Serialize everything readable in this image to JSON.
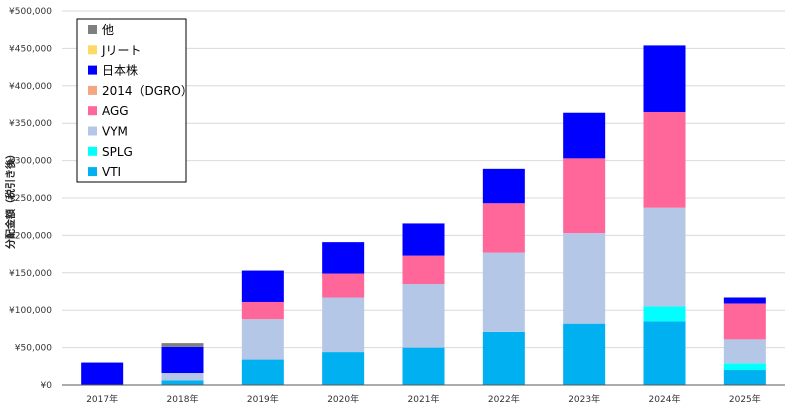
{
  "chart_data": {
    "type": "bar",
    "stacked": true,
    "title": "",
    "xlabel": "",
    "ylabel": "分配金額（税引き後）",
    "ylim": [
      0,
      500000
    ],
    "y_ticks": [
      0,
      50000,
      100000,
      150000,
      200000,
      250000,
      300000,
      350000,
      400000,
      450000,
      500000
    ],
    "y_tick_labels": [
      "¥0",
      "¥50,000",
      "¥100,000",
      "¥150,000",
      "¥200,000",
      "¥250,000",
      "¥300,000",
      "¥350,000",
      "¥400,000",
      "¥450,000",
      "¥500,000"
    ],
    "grid": true,
    "legend_position": "top-left",
    "categories": [
      "2017年",
      "2018年",
      "2019年",
      "2020年",
      "2021年",
      "2022年",
      "2023年",
      "2024年",
      "2025年"
    ],
    "series": [
      {
        "name": "VTI",
        "color": "#00b0f0",
        "values": [
          0,
          6000,
          34000,
          44000,
          50000,
          71000,
          82000,
          85000,
          20000
        ]
      },
      {
        "name": "SPLG",
        "color": "#00ffff",
        "values": [
          0,
          0,
          0,
          0,
          0,
          0,
          0,
          20000,
          9000
        ]
      },
      {
        "name": "VYM",
        "color": "#b4c7e7",
        "values": [
          0,
          10000,
          54000,
          73000,
          85000,
          106000,
          121000,
          132000,
          32000
        ]
      },
      {
        "name": "AGG",
        "color": "#ff6699",
        "values": [
          0,
          0,
          23000,
          32000,
          38000,
          66000,
          100000,
          128000,
          48000
        ]
      },
      {
        "name": "2014（DGRO）",
        "color": "#f4a582",
        "values": [
          0,
          0,
          0,
          0,
          0,
          0,
          0,
          0,
          0
        ]
      },
      {
        "name": "日本株",
        "color": "#0000ff",
        "values": [
          30000,
          35000,
          42000,
          42000,
          43000,
          46000,
          61000,
          89000,
          8000
        ]
      },
      {
        "name": "Jリート",
        "color": "#ffd966",
        "values": [
          0,
          0,
          0,
          0,
          0,
          0,
          0,
          0,
          0
        ]
      },
      {
        "name": "他",
        "color": "#7f7f7f",
        "values": [
          0,
          5000,
          0,
          0,
          0,
          0,
          0,
          0,
          0
        ]
      }
    ],
    "legend_order": [
      "他",
      "Jリート",
      "日本株",
      "2014（DGRO）",
      "AGG",
      "VYM",
      "SPLG",
      "VTI"
    ]
  },
  "colors": {
    "gridline": "#d9d9d9",
    "axis": "#595959",
    "legend_border": "#000000"
  }
}
